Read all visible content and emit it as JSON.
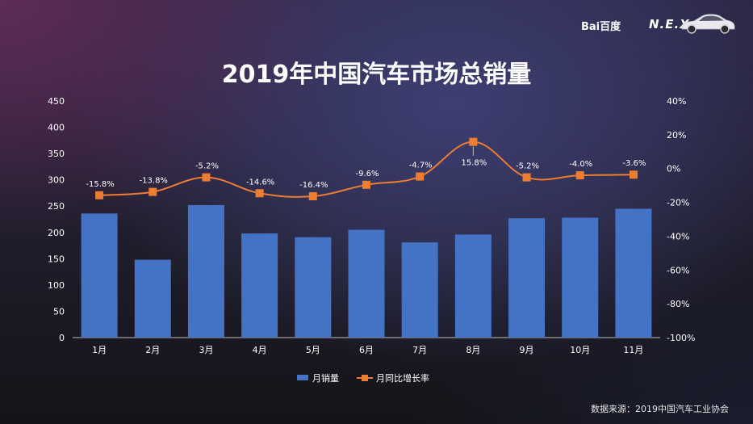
{
  "brand": {
    "logo_text": "Bai百度",
    "product_text": "N.E.X.T",
    "car_icon": "car-icon"
  },
  "source_note": "数据来源：2019中国汽车工业协会",
  "chart_data": {
    "type": "bar",
    "title": "2019年中国汽车市场总销量",
    "categories": [
      "1月",
      "2月",
      "3月",
      "4月",
      "5月",
      "6月",
      "7月",
      "8月",
      "9月",
      "10月",
      "11月"
    ],
    "series": [
      {
        "name": "月销量",
        "type": "bar",
        "axis": "left",
        "color": "#4472c4",
        "values": [
          236,
          148,
          252,
          198,
          191,
          205,
          181,
          196,
          227,
          228,
          245
        ]
      },
      {
        "name": "月同比增长率",
        "type": "line",
        "axis": "right",
        "color": "#ed7d31",
        "values": [
          -15.8,
          -13.8,
          -5.2,
          -14.6,
          -16.4,
          -9.6,
          -4.7,
          15.8,
          -5.2,
          -4.0,
          -3.6
        ],
        "labels": [
          "-15.8%",
          "-13.8%",
          "-5.2%",
          "-14.6%",
          "-16.4%",
          "-9.6%",
          "-4.7%",
          "15.8%",
          "-5.2%",
          "-4.0%",
          "-3.6%"
        ]
      }
    ],
    "y_left": {
      "min": 0,
      "max": 450,
      "ticks": [
        "0",
        "50",
        "100",
        "150",
        "200",
        "250",
        "300",
        "350",
        "400",
        "450"
      ]
    },
    "y_right": {
      "min": -100,
      "max": 40,
      "ticks": [
        "-100%",
        "-80%",
        "-60%",
        "-40%",
        "-20%",
        "0%",
        "20%",
        "40%"
      ]
    },
    "grid": false,
    "legend": "bottom-center"
  }
}
